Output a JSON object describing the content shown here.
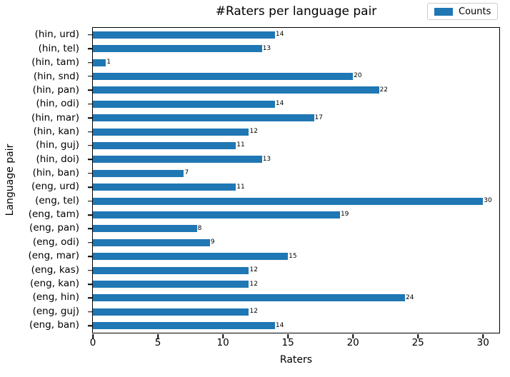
{
  "chart_data": {
    "type": "bar",
    "orientation": "horizontal",
    "title": "#Raters per language pair",
    "xlabel": "Raters",
    "ylabel": "Language pair",
    "legend": {
      "label": "Counts",
      "position": "upper right"
    },
    "bar_color": "#1f77b4",
    "grid": false,
    "categories": [
      "(hin, urd)",
      "(hin, tel)",
      "(hin, tam)",
      "(hin, snd)",
      "(hin, pan)",
      "(hin, odi)",
      "(hin, mar)",
      "(hin, kan)",
      "(hin, guj)",
      "(hin, doi)",
      "(hin, ban)",
      "(eng, urd)",
      "(eng, tel)",
      "(eng, tam)",
      "(eng, pan)",
      "(eng, odi)",
      "(eng, mar)",
      "(eng, kas)",
      "(eng, kan)",
      "(eng, hin)",
      "(eng, guj)",
      "(eng, ban)"
    ],
    "values": [
      14,
      13,
      1,
      20,
      22,
      14,
      17,
      12,
      11,
      13,
      7,
      11,
      30,
      19,
      8,
      9,
      15,
      12,
      12,
      24,
      12,
      14
    ],
    "xticks": [
      0,
      5,
      10,
      15,
      20,
      25,
      30
    ],
    "xlim": [
      0,
      31.25
    ]
  }
}
